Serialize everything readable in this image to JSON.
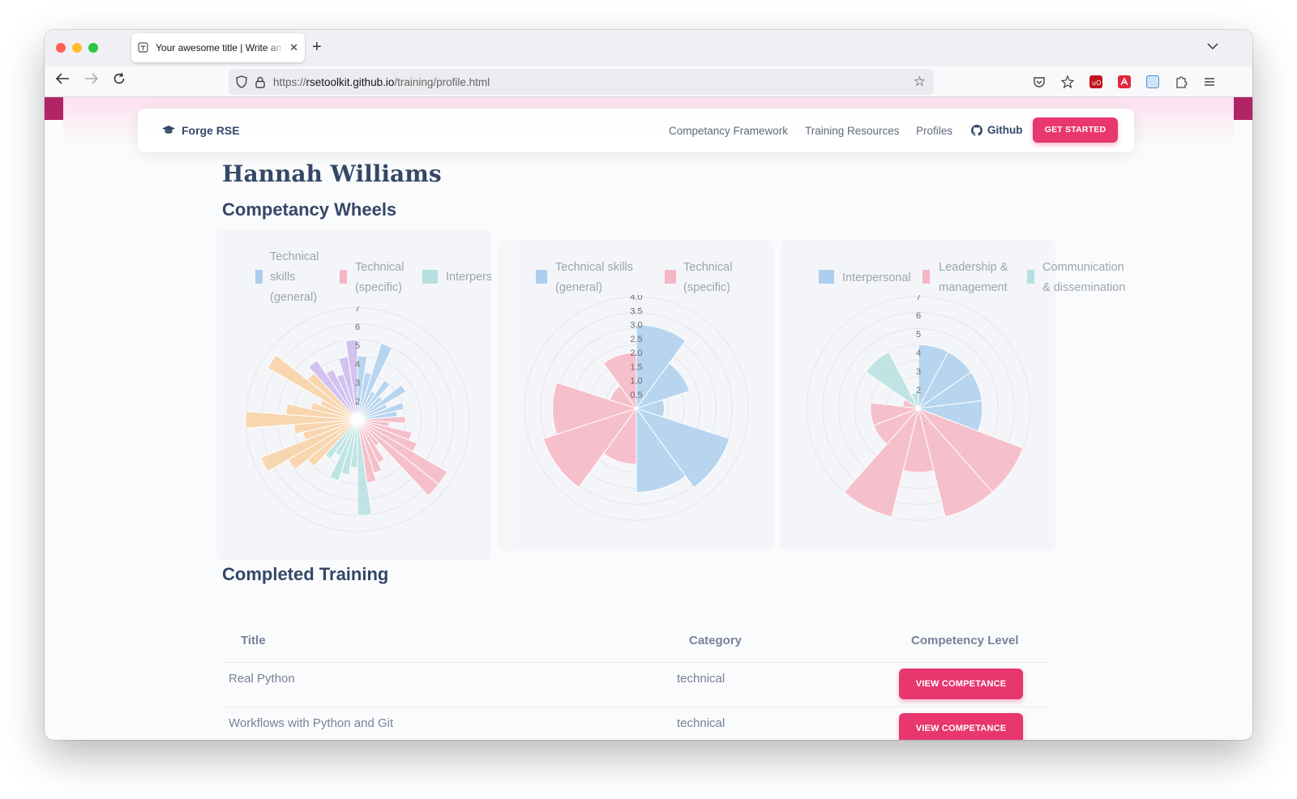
{
  "browser": {
    "tab_title": "Your awesome title | Write an awesome description",
    "url_prefix": "https://",
    "url_host": "rsetoolkit.github.io",
    "url_path": "/training/profile.html"
  },
  "site": {
    "brand": "Forge RSE",
    "nav": [
      "Competancy Framework",
      "Training Resources",
      "Profiles"
    ],
    "github_label": "Github",
    "cta_label": "GET STARTED"
  },
  "profile": {
    "name": "Hannah Williams",
    "wheels_heading": "Competancy Wheels",
    "training_heading": "Completed Training"
  },
  "wheels": [
    {
      "legend": [
        {
          "lines": [
            "Technical",
            "skills",
            "(general)"
          ],
          "color": "#a9cdef"
        },
        {
          "lines": [
            "Technical",
            "(specific)"
          ],
          "color": "#f5b3c2"
        },
        {
          "lines": [
            "Interperso"
          ],
          "color": "#b3dfdf"
        }
      ]
    },
    {
      "legend": [
        {
          "lines": [
            "Technical skills",
            "(general)"
          ],
          "color": "#a9cdef"
        },
        {
          "lines": [
            "Technical",
            "(specific)"
          ],
          "color": "#f5b3c2"
        }
      ]
    },
    {
      "legend": [
        {
          "lines": [
            "Interpersonal"
          ],
          "color": "#a9cdef"
        },
        {
          "lines": [
            "Leadership &",
            "management"
          ],
          "color": "#f5b3c2"
        },
        {
          "lines": [
            "Communication",
            "& dissemination"
          ],
          "color": "#b3dfdf"
        }
      ]
    }
  ],
  "chart_data": [
    {
      "type": "polarArea",
      "r_ticks": [
        "2",
        "3",
        "4",
        "5",
        "6",
        "7"
      ],
      "rmax": 7,
      "series": [
        {
          "name": "Technical skills (general)",
          "color": "#a9cdef",
          "values": [
            4,
            3,
            5,
            2,
            3,
            2,
            3.5,
            2,
            3,
            2.5
          ]
        },
        {
          "name": "Technical (specific)",
          "color": "#f5b3c2",
          "values": [
            3,
            2,
            3.5,
            4,
            6.5,
            6.5,
            2,
            3,
            3.5,
            4
          ]
        },
        {
          "name": "Interpersonal",
          "color": "#b3dfdf",
          "values": [
            6,
            3,
            3.5,
            4,
            2.5,
            3
          ]
        },
        {
          "category": "unlabeled",
          "color": "#f8cf9e",
          "values": [
            4,
            5,
            6.5,
            3.5,
            4,
            7,
            4.5,
            3,
            2.5,
            6.5,
            4
          ]
        },
        {
          "category": "unlabeled",
          "color": "#c9b6ee",
          "values": [
            4.5,
            3.5,
            3,
            4,
            5
          ]
        }
      ]
    },
    {
      "type": "polarArea",
      "r_ticks": [
        "0.5",
        "1.0",
        "1.5",
        "2.0",
        "2.5",
        "3.0",
        "3.5",
        "4.0"
      ],
      "rmax": 4,
      "series": [
        {
          "name": "Technical skills (general)",
          "color": "#a9cdef",
          "values": [
            3,
            2,
            1,
            3.5,
            3
          ]
        },
        {
          "name": "Technical (specific)",
          "color": "#f5b3c2",
          "values": [
            2,
            3.5,
            3,
            1,
            2
          ]
        }
      ]
    },
    {
      "type": "polarArea",
      "r_ticks": [
        "2",
        "3",
        "4",
        "5",
        "6",
        "7"
      ],
      "rmax": 7,
      "series": [
        {
          "name": "Interpersonal",
          "color": "#a9cdef",
          "values": [
            4,
            4,
            4,
            4
          ]
        },
        {
          "name": "Leadership & management",
          "color": "#f5b3c2",
          "values": [
            7,
            7,
            4,
            7,
            3,
            3,
            1
          ]
        },
        {
          "name": "Communication & dissemination",
          "color": "#b3dfdf",
          "values": [
            4,
            1
          ]
        }
      ]
    }
  ],
  "training": {
    "headers": [
      "Title",
      "Category",
      "Competency Level"
    ],
    "rows": [
      {
        "title": "Real Python",
        "category": "technical",
        "action": "VIEW COMPETANCE"
      },
      {
        "title": "Workflows with Python and Git",
        "category": "technical",
        "action": "VIEW COMPETANCE"
      }
    ]
  }
}
